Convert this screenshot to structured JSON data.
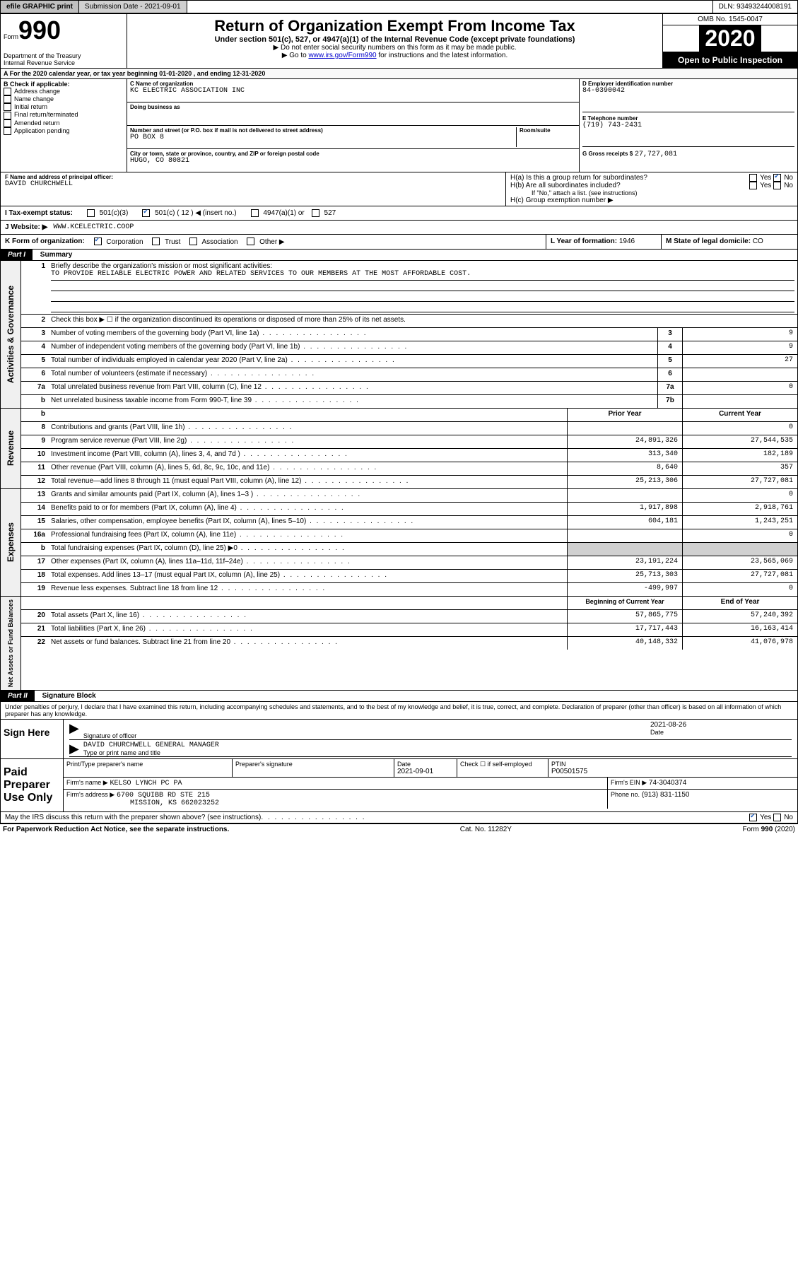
{
  "topbar": {
    "efile": "efile GRAPHIC print",
    "submission_label": "Submission Date - 2021-09-01",
    "dln_label": "DLN: 93493244008191"
  },
  "header": {
    "form_label": "Form",
    "form_number": "990",
    "dept": "Department of the Treasury",
    "irs": "Internal Revenue Service",
    "title": "Return of Organization Exempt From Income Tax",
    "subtitle": "Under section 501(c), 527, or 4947(a)(1) of the Internal Revenue Code (except private foundations)",
    "note1": "▶ Do not enter social security numbers on this form as it may be made public.",
    "note2_pre": "▶ Go to ",
    "note2_link": "www.irs.gov/Form990",
    "note2_post": " for instructions and the latest information.",
    "omb": "OMB No. 1545-0047",
    "year": "2020",
    "open": "Open to Public Inspection"
  },
  "line_a": "A For the 2020 calendar year, or tax year beginning 01-01-2020   , and ending 12-31-2020",
  "b": {
    "title": "B Check if applicable:",
    "items": [
      "Address change",
      "Name change",
      "Initial return",
      "Final return/terminated",
      "Amended return",
      "Application pending"
    ]
  },
  "c": {
    "name_lbl": "C Name of organization",
    "name": "KC ELECTRIC ASSOCIATION INC",
    "dba_lbl": "Doing business as",
    "street_lbl": "Number and street (or P.O. box if mail is not delivered to street address)",
    "room_lbl": "Room/suite",
    "street": "PO BOX 8",
    "city_lbl": "City or town, state or province, country, and ZIP or foreign postal code",
    "city": "HUGO, CO  80821"
  },
  "d": {
    "lbl": "D Employer identification number",
    "val": "84-0390042"
  },
  "e": {
    "lbl": "E Telephone number",
    "val": "(719) 743-2431"
  },
  "g": {
    "lbl": "G Gross receipts $",
    "val": "27,727,081"
  },
  "f": {
    "lbl": "F Name and address of principal officer:",
    "val": "DAVID CHURCHWELL"
  },
  "h": {
    "a_lbl": "H(a)  Is this a group return for subordinates?",
    "b_lbl": "H(b)  Are all subordinates included?",
    "b_note": "If \"No,\" attach a list. (see instructions)",
    "c_lbl": "H(c)  Group exemption number ▶",
    "yes": "Yes",
    "no": "No"
  },
  "i": {
    "lbl": "I  Tax-exempt status:",
    "opts": [
      "501(c)(3)",
      "501(c) ( 12 ) ◀ (insert no.)",
      "4947(a)(1) or",
      "527"
    ]
  },
  "j": {
    "lbl": "J   Website: ▶",
    "val": "WWW.KCELECTRIC.COOP"
  },
  "k": {
    "lbl": "K Form of organization:",
    "opts": [
      "Corporation",
      "Trust",
      "Association",
      "Other ▶"
    ]
  },
  "l": {
    "lbl": "L Year of formation:",
    "val": "1946"
  },
  "m": {
    "lbl": "M State of legal domicile:",
    "val": "CO"
  },
  "part1": {
    "label": "Part I",
    "title": "Summary"
  },
  "summary": {
    "q1": "Briefly describe the organization's mission or most significant activities:",
    "q1_val": "TO PROVIDE RELIABLE ELECTRIC POWER AND RELATED SERVICES TO OUR MEMBERS AT THE MOST AFFORDABLE COST.",
    "q2": "Check this box ▶ ☐  if the organization discontinued its operations or disposed of more than 25% of its net assets.",
    "rows_gov": [
      {
        "n": "3",
        "t": "Number of voting members of the governing body (Part VI, line 1a)",
        "c": "3",
        "v": "9"
      },
      {
        "n": "4",
        "t": "Number of independent voting members of the governing body (Part VI, line 1b)",
        "c": "4",
        "v": "9"
      },
      {
        "n": "5",
        "t": "Total number of individuals employed in calendar year 2020 (Part V, line 2a)",
        "c": "5",
        "v": "27"
      },
      {
        "n": "6",
        "t": "Total number of volunteers (estimate if necessary)",
        "c": "6",
        "v": ""
      },
      {
        "n": "7a",
        "t": "Total unrelated business revenue from Part VIII, column (C), line 12",
        "c": "7a",
        "v": "0"
      },
      {
        "n": "b",
        "t": "Net unrelated business taxable income from Form 990-T, line 39",
        "c": "7b",
        "v": ""
      }
    ],
    "prior_hdr": "Prior Year",
    "curr_hdr": "Current Year",
    "rows_rev": [
      {
        "n": "8",
        "t": "Contributions and grants (Part VIII, line 1h)",
        "p": "",
        "c": "0"
      },
      {
        "n": "9",
        "t": "Program service revenue (Part VIII, line 2g)",
        "p": "24,891,326",
        "c": "27,544,535"
      },
      {
        "n": "10",
        "t": "Investment income (Part VIII, column (A), lines 3, 4, and 7d )",
        "p": "313,340",
        "c": "182,189"
      },
      {
        "n": "11",
        "t": "Other revenue (Part VIII, column (A), lines 5, 6d, 8c, 9c, 10c, and 11e)",
        "p": "8,640",
        "c": "357"
      },
      {
        "n": "12",
        "t": "Total revenue—add lines 8 through 11 (must equal Part VIII, column (A), line 12)",
        "p": "25,213,306",
        "c": "27,727,081"
      }
    ],
    "rows_exp": [
      {
        "n": "13",
        "t": "Grants and similar amounts paid (Part IX, column (A), lines 1–3 )",
        "p": "",
        "c": "0"
      },
      {
        "n": "14",
        "t": "Benefits paid to or for members (Part IX, column (A), line 4)",
        "p": "1,917,898",
        "c": "2,918,761"
      },
      {
        "n": "15",
        "t": "Salaries, other compensation, employee benefits (Part IX, column (A), lines 5–10)",
        "p": "604,181",
        "c": "1,243,251"
      },
      {
        "n": "16a",
        "t": "Professional fundraising fees (Part IX, column (A), line 11e)",
        "p": "",
        "c": "0"
      },
      {
        "n": "b",
        "t": "Total fundraising expenses (Part IX, column (D), line 25) ▶0",
        "p": "gray",
        "c": "gray"
      },
      {
        "n": "17",
        "t": "Other expenses (Part IX, column (A), lines 11a–11d, 11f–24e)",
        "p": "23,191,224",
        "c": "23,565,069"
      },
      {
        "n": "18",
        "t": "Total expenses. Add lines 13–17 (must equal Part IX, column (A), line 25)",
        "p": "25,713,303",
        "c": "27,727,081"
      },
      {
        "n": "19",
        "t": "Revenue less expenses. Subtract line 18 from line 12",
        "p": "-499,997",
        "c": "0"
      }
    ],
    "begin_hdr": "Beginning of Current Year",
    "end_hdr": "End of Year",
    "rows_net": [
      {
        "n": "20",
        "t": "Total assets (Part X, line 16)",
        "p": "57,865,775",
        "c": "57,240,392"
      },
      {
        "n": "21",
        "t": "Total liabilities (Part X, line 26)",
        "p": "17,717,443",
        "c": "16,163,414"
      },
      {
        "n": "22",
        "t": "Net assets or fund balances. Subtract line 21 from line 20",
        "p": "40,148,332",
        "c": "41,076,978"
      }
    ],
    "side_gov": "Activities & Governance",
    "side_rev": "Revenue",
    "side_exp": "Expenses",
    "side_net": "Net Assets or Fund Balances"
  },
  "part2": {
    "label": "Part II",
    "title": "Signature Block"
  },
  "perjury": "Under penalties of perjury, I declare that I have examined this return, including accompanying schedules and statements, and to the best of my knowledge and belief, it is true, correct, and complete. Declaration of preparer (other than officer) is based on all information of which preparer has any knowledge.",
  "sign": {
    "here": "Sign Here",
    "sig_lbl": "Signature of officer",
    "date_lbl": "Date",
    "date": "2021-08-26",
    "name": "DAVID CHURCHWELL  GENERAL MANAGER",
    "name_lbl": "Type or print name and title"
  },
  "paid": {
    "title": "Paid Preparer Use Only",
    "print_lbl": "Print/Type preparer's name",
    "sig_lbl": "Preparer's signature",
    "date_lbl": "Date",
    "date": "2021-09-01",
    "self_lbl": "Check ☐  if self-employed",
    "ptin_lbl": "PTIN",
    "ptin": "P00501575",
    "firm_name_lbl": "Firm's name    ▶",
    "firm_name": "KELSO LYNCH PC PA",
    "firm_ein_lbl": "Firm's EIN ▶",
    "firm_ein": "74-3040374",
    "firm_addr_lbl": "Firm's address ▶",
    "firm_addr1": "6700 SQUIBB RD STE 215",
    "firm_addr2": "MISSION, KS  662023252",
    "phone_lbl": "Phone no.",
    "phone": "(913) 831-1150"
  },
  "discuss": "May the IRS discuss this return with the preparer shown above? (see instructions)",
  "foot": {
    "pra": "For Paperwork Reduction Act Notice, see the separate instructions.",
    "cat": "Cat. No. 11282Y",
    "form": "Form 990 (2020)"
  }
}
